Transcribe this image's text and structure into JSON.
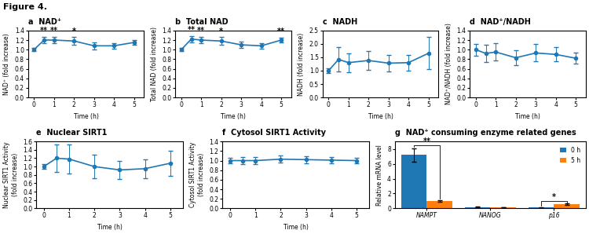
{
  "title": "Figure 4.",
  "chart_data": [
    {
      "type": "line",
      "title": "a  NAD⁺",
      "xlabel": "Time (h)",
      "ylabel": "NAD⁺ (fold increase)",
      "x": [
        0,
        0.5,
        1,
        2,
        3,
        4,
        5
      ],
      "series": [
        {
          "values": [
            1.0,
            1.2,
            1.2,
            1.18,
            1.08,
            1.08,
            1.15
          ],
          "yerr": [
            0.03,
            0.07,
            0.07,
            0.08,
            0.07,
            0.06,
            0.05
          ],
          "marker": "o",
          "line_style": "solid"
        }
      ],
      "xlim": [
        -0.3,
        5.5
      ],
      "xticks": [
        0,
        1,
        2,
        3,
        4,
        5
      ],
      "ylim": [
        0.0,
        1.4
      ],
      "yticks": [
        0.0,
        0.2,
        0.4,
        0.6,
        0.8,
        1.0,
        1.2,
        1.4
      ],
      "annotations": [
        {
          "x": 0.5,
          "text": "**"
        },
        {
          "x": 1,
          "text": "**"
        },
        {
          "x": 2,
          "text": "*"
        }
      ]
    },
    {
      "type": "line",
      "title": "b  Total NAD",
      "xlabel": "Time (h)",
      "ylabel": "Total NAD (fold increase)",
      "x": [
        0,
        0.5,
        1,
        2,
        3,
        4,
        5
      ],
      "series": [
        {
          "values": [
            1.0,
            1.22,
            1.2,
            1.18,
            1.1,
            1.08,
            1.2
          ],
          "yerr": [
            0.03,
            0.07,
            0.07,
            0.08,
            0.07,
            0.06,
            0.05
          ],
          "marker": "o",
          "line_style": "solid"
        }
      ],
      "xlim": [
        -0.3,
        5.5
      ],
      "xticks": [
        0,
        1,
        2,
        3,
        4,
        5
      ],
      "ylim": [
        0.0,
        1.4
      ],
      "yticks": [
        0.0,
        0.2,
        0.4,
        0.6,
        0.8,
        1.0,
        1.2,
        1.4
      ],
      "annotations": [
        {
          "x": 0.5,
          "text": "**"
        },
        {
          "x": 1,
          "text": "**"
        },
        {
          "x": 2,
          "text": "*"
        },
        {
          "x": 5,
          "text": "**"
        }
      ]
    },
    {
      "type": "line",
      "title": "c  NADH",
      "xlabel": "Time (h)",
      "ylabel": "NADH (fold increase)",
      "x": [
        0,
        0.5,
        1,
        2,
        3,
        4,
        5
      ],
      "series": [
        {
          "values": [
            1.0,
            1.42,
            1.3,
            1.38,
            1.28,
            1.3,
            1.65
          ],
          "yerr": [
            0.08,
            0.45,
            0.35,
            0.35,
            0.3,
            0.3,
            0.6
          ],
          "marker": "o",
          "line_style": "solid"
        }
      ],
      "xlim": [
        -0.3,
        5.5
      ],
      "xticks": [
        0,
        1,
        2,
        3,
        4,
        5
      ],
      "ylim": [
        0.0,
        2.5
      ],
      "yticks": [
        0.0,
        0.5,
        1.0,
        1.5,
        2.0,
        2.5
      ]
    },
    {
      "type": "line",
      "title": "d  NAD⁺/NADH",
      "xlabel": "Time (h)",
      "ylabel": "NAD⁺/NADH (fold increase)",
      "x": [
        0,
        0.5,
        1,
        2,
        3,
        4,
        5
      ],
      "series": [
        {
          "values": [
            1.0,
            0.92,
            0.95,
            0.83,
            0.93,
            0.9,
            0.82
          ],
          "yerr": [
            0.12,
            0.18,
            0.18,
            0.15,
            0.18,
            0.15,
            0.12
          ],
          "marker": "o",
          "line_style": "solid"
        }
      ],
      "xlim": [
        -0.3,
        5.5
      ],
      "xticks": [
        0,
        1,
        2,
        3,
        4,
        5
      ],
      "ylim": [
        0.0,
        1.4
      ],
      "yticks": [
        0.0,
        0.2,
        0.4,
        0.6,
        0.8,
        1.0,
        1.2,
        1.4
      ]
    },
    {
      "type": "line",
      "title": "e  Nuclear SIRT1",
      "xlabel": "Time (h)",
      "ylabel": "Nuclear SIRT1 Activity\n(fold increase)",
      "x": [
        0,
        0.5,
        1,
        2,
        3,
        4,
        5
      ],
      "series": [
        {
          "values": [
            1.0,
            1.2,
            1.18,
            1.0,
            0.92,
            0.95,
            1.08
          ],
          "yerr": [
            0.05,
            0.32,
            0.35,
            0.28,
            0.22,
            0.22,
            0.3
          ],
          "marker": "o",
          "line_style": "solid"
        }
      ],
      "xlim": [
        -0.3,
        5.5
      ],
      "xticks": [
        0,
        1,
        2,
        3,
        4,
        5
      ],
      "ylim": [
        0.0,
        1.6
      ],
      "yticks": [
        0.0,
        0.2,
        0.4,
        0.6,
        0.8,
        1.0,
        1.2,
        1.4,
        1.6
      ]
    },
    {
      "type": "line",
      "title": "f  Cytosol SIRT1 Activity",
      "xlabel": "Time (h)",
      "ylabel": "Cytosol SIRT1 Activity\n(fold increase)",
      "x": [
        0,
        0.5,
        1,
        2,
        3,
        4,
        5
      ],
      "series": [
        {
          "values": [
            1.0,
            1.0,
            1.0,
            1.03,
            1.02,
            1.01,
            1.0
          ],
          "yerr": [
            0.05,
            0.08,
            0.08,
            0.07,
            0.07,
            0.06,
            0.05
          ],
          "marker": "o",
          "line_style": "solid"
        }
      ],
      "xlim": [
        -0.3,
        5.5
      ],
      "xticks": [
        0,
        1,
        2,
        3,
        4,
        5
      ],
      "ylim": [
        0.0,
        1.4
      ],
      "yticks": [
        0.0,
        0.2,
        0.4,
        0.6,
        0.8,
        1.0,
        1.2,
        1.4
      ]
    },
    {
      "type": "bar",
      "title": "g  NAD⁺ consuming enzyme related genes",
      "ylabel": "Relative mRNA level",
      "categories": [
        "NAMPT",
        "NANOG",
        "p16"
      ],
      "series": [
        {
          "name": "0 h",
          "values": [
            7.2,
            0.18,
            0.12
          ],
          "yerr": [
            0.9,
            0.06,
            0.04
          ]
        },
        {
          "name": "5 h",
          "values": [
            1.0,
            0.14,
            0.55
          ],
          "yerr": [
            0.15,
            0.04,
            0.1
          ]
        }
      ],
      "ylim": [
        0,
        9
      ],
      "yticks": [
        0,
        2,
        4,
        6,
        8
      ],
      "legend": "upper right",
      "annotations": [
        {
          "category": "NAMPT",
          "text": "**"
        },
        {
          "category": "p16",
          "text": "*"
        }
      ]
    }
  ]
}
